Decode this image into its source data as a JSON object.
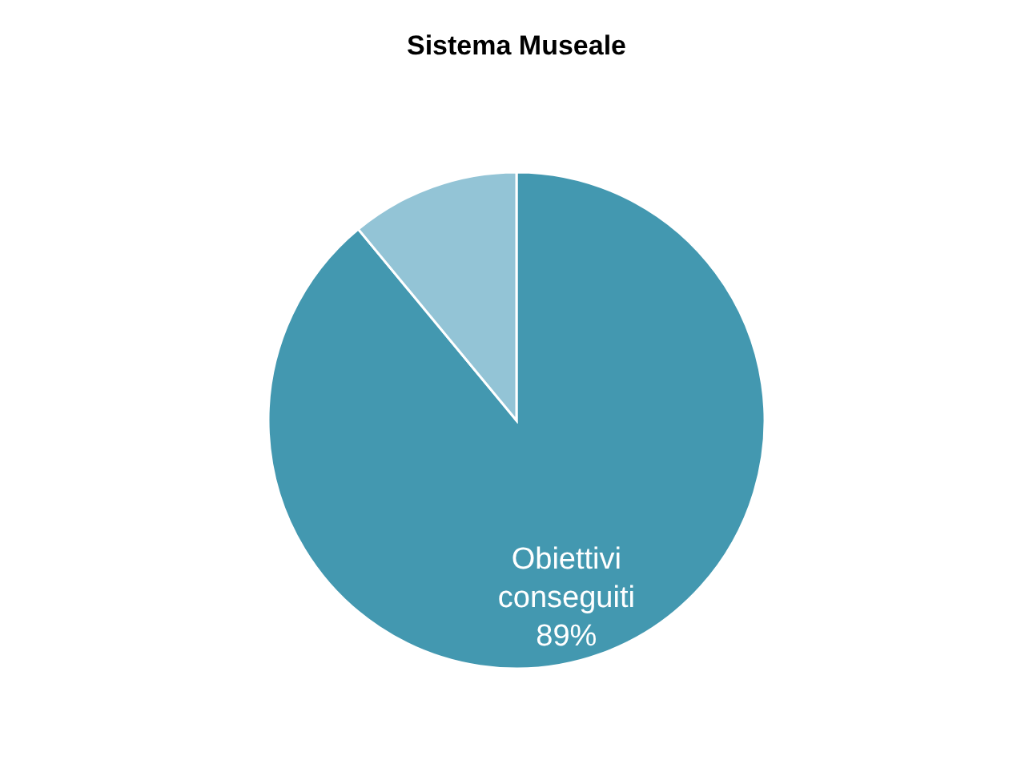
{
  "chart_data": {
    "type": "pie",
    "title": "Sistema Museale",
    "categories": [
      "Obiettivi conseguiti",
      null
    ],
    "values": [
      89,
      11
    ],
    "colors": [
      "#4398b0",
      "#93c4d6"
    ],
    "value_labels": [
      "89%",
      null
    ]
  }
}
